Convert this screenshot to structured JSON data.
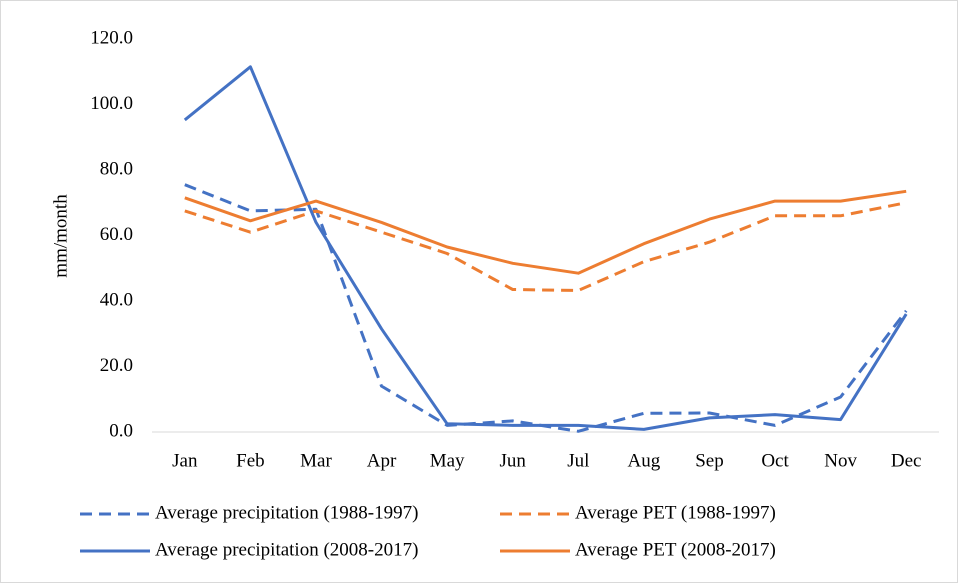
{
  "chart_data": {
    "type": "line",
    "y_label": "mm/month",
    "categories": [
      "Jan",
      "Feb",
      "Mar",
      "Apr",
      "May",
      "Jun",
      "Jul",
      "Aug",
      "Sep",
      "Oct",
      "Nov",
      "Dec"
    ],
    "ylim": [
      0,
      120
    ],
    "yticks": [
      {
        "value": 0,
        "label": "0.0"
      },
      {
        "value": 20,
        "label": "20.0"
      },
      {
        "value": 40,
        "label": "40.0"
      },
      {
        "value": 60,
        "label": "60.0"
      },
      {
        "value": 80,
        "label": "80.0"
      },
      {
        "value": 100,
        "label": "100.0"
      },
      {
        "value": 120,
        "label": "120.0"
      }
    ],
    "grid": false,
    "legend": "bottom",
    "series": [
      {
        "name": "Average precipitation (1988-1997)",
        "color": "#4472c4",
        "style": "dashed",
        "values": [
          75.5,
          67.5,
          68,
          14,
          2,
          3.4,
          0.2,
          5.7,
          5.8,
          2,
          10.7,
          37
        ]
      },
      {
        "name": "Average PET (1988-1997)",
        "color": "#ed7d31",
        "style": "dashed",
        "values": [
          67.5,
          61,
          67.5,
          61,
          54.5,
          43.5,
          43.2,
          52,
          58,
          66,
          66,
          70
        ]
      },
      {
        "name": "Average precipitation (2008-2017)",
        "color": "#4472c4",
        "style": "solid",
        "values": [
          95.3,
          111.5,
          64,
          31.5,
          2.5,
          2,
          2,
          0.8,
          4.3,
          5.3,
          3.8,
          36
        ]
      },
      {
        "name": "Average PET (2008-2017)",
        "color": "#ed7d31",
        "style": "solid",
        "values": [
          71.5,
          64.5,
          70.5,
          64,
          56.5,
          51.5,
          48.5,
          57.5,
          65,
          70.5,
          70.5,
          73.5
        ]
      }
    ]
  }
}
